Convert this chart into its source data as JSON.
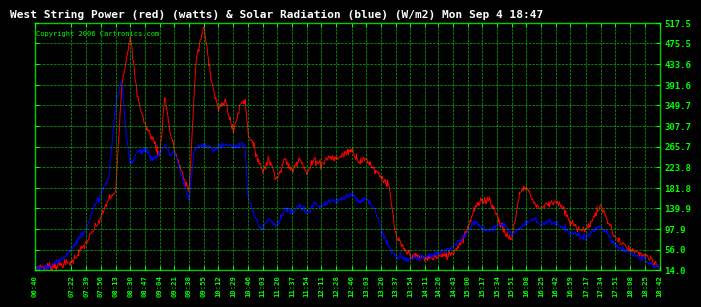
{
  "title": "West String Power (red) (watts) & Solar Radiation (blue) (W/m2) Mon Sep 4 18:47",
  "copyright": "Copyright 2006 Cartronics.com",
  "bg_color": "#000000",
  "plot_bg_color": "#000000",
  "grid_color": "#00cc00",
  "title_color": "#ffffff",
  "tick_label_color": "#00ff00",
  "copyright_color": "#00ff00",
  "line_red_color": "#ff0000",
  "line_blue_color": "#0000ff",
  "yticks": [
    14.0,
    56.0,
    97.9,
    139.9,
    181.8,
    223.8,
    265.7,
    307.7,
    349.7,
    391.6,
    433.6,
    475.5,
    517.5
  ],
  "ylim": [
    14.0,
    517.5
  ],
  "xlabels": [
    "06:40",
    "07:22",
    "07:39",
    "07:56",
    "08:13",
    "08:30",
    "08:47",
    "09:04",
    "09:21",
    "09:38",
    "09:55",
    "10:12",
    "10:29",
    "10:46",
    "11:03",
    "11:20",
    "11:37",
    "11:54",
    "12:11",
    "12:28",
    "12:46",
    "13:03",
    "13:20",
    "13:37",
    "13:54",
    "14:11",
    "14:26",
    "14:43",
    "15:00",
    "15:17",
    "15:34",
    "15:51",
    "16:08",
    "16:25",
    "16:42",
    "16:59",
    "17:17",
    "17:34",
    "17:51",
    "18:08",
    "18:25",
    "18:42"
  ]
}
